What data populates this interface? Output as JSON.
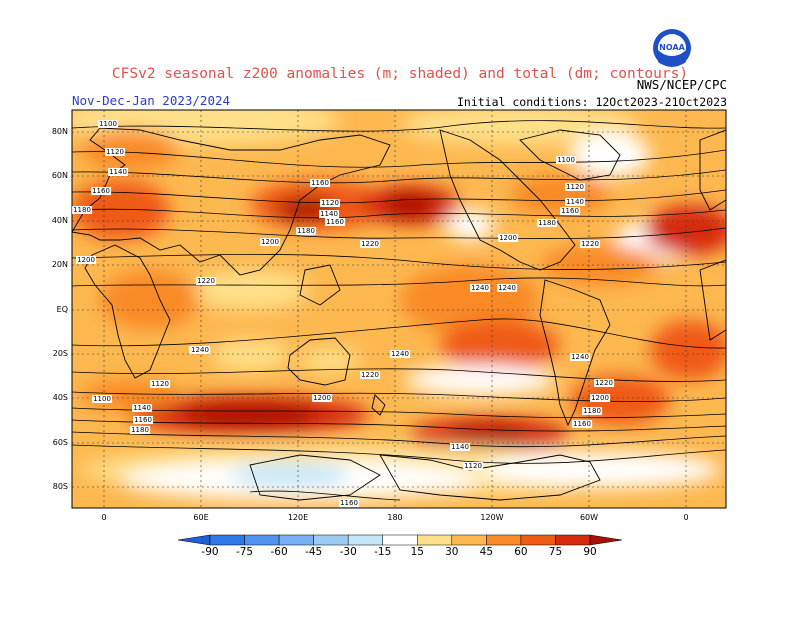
{
  "header": {
    "title": "CFSv2 seasonal z200 anomalies (m; shaded) and total (dm; contours)",
    "period": "Nov-Dec-Jan 2023/2024",
    "initial_conditions": "Initial conditions: 12Oct2023-21Oct2023",
    "agency": "NWS/NCEP/CPC",
    "logo_text": "NOAA"
  },
  "map": {
    "lat_labels": [
      "80N",
      "60N",
      "40N",
      "20N",
      "EQ",
      "20S",
      "40S",
      "60S",
      "80S"
    ],
    "lon_labels": [
      "0",
      "60E",
      "120E",
      "180",
      "120W",
      "60W",
      "0"
    ],
    "contour_labels": [
      "1100",
      "1120",
      "1140",
      "1160",
      "1180",
      "1200",
      "1220",
      "1240",
      "1240",
      "1240",
      "1240",
      "1220",
      "1200",
      "1180",
      "1160",
      "1140",
      "1120",
      "1160",
      "1100",
      "1120",
      "1140",
      "1160",
      "1180",
      "1200",
      "1220",
      "1100",
      "1120",
      "1140",
      "1160",
      "1180",
      "1220",
      "1200",
      "1240",
      "1240",
      "1220",
      "1200",
      "1180",
      "1160",
      "1140",
      "1120",
      "1160"
    ]
  },
  "colorbar": {
    "labels": [
      "-90",
      "-75",
      "-60",
      "-45",
      "-30",
      "-15",
      "15",
      "30",
      "45",
      "60",
      "75",
      "90"
    ],
    "colors": [
      "#1f5fd6",
      "#2f78e8",
      "#4f93ee",
      "#76aef2",
      "#9ccaf5",
      "#c2e6f8",
      "#ffffff",
      "#ffe08a",
      "#fdb850",
      "#f98a28",
      "#ef5a14",
      "#d62a0c",
      "#a80f05"
    ]
  }
}
